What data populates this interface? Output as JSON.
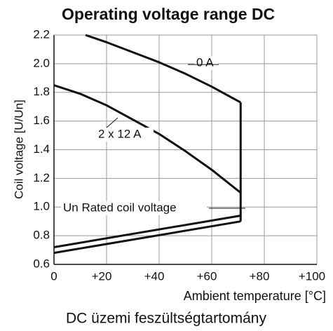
{
  "chart_data": {
    "type": "line",
    "title": "Operating voltage range DC",
    "y_label": "Coil voltage [U/Un]",
    "x_label": "Ambient temperature [°C]",
    "caption": "DC üzemi feszültségtartomány",
    "xlim": [
      0,
      100
    ],
    "xticks": [
      0,
      {
        "value": 20,
        "label": "+20"
      },
      {
        "value": 40,
        "label": "+40"
      },
      {
        "value": 60,
        "label": "+60"
      },
      {
        "value": 80,
        "label": "+80"
      },
      {
        "value": 100,
        "label": "+100"
      }
    ],
    "ylim": [
      0.6,
      2.2
    ],
    "yticks": [
      0.6,
      0.8,
      {
        "value": 1,
        "label": "1.0"
      },
      1.2,
      1.4,
      1.6,
      1.8,
      {
        "value": 2,
        "label": "2.0"
      },
      2.2
    ],
    "grid": true,
    "color": "#111111",
    "series": [
      {
        "x": [
          12,
          20,
          30,
          40,
          50,
          60,
          71
        ],
        "values": [
          2.2,
          2.15,
          2.08,
          2.01,
          1.93,
          1.84,
          1.73
        ]
      },
      {
        "x": [
          0,
          10,
          20,
          30,
          40,
          50,
          60,
          71
        ],
        "values": [
          1.85,
          1.79,
          1.71,
          1.61,
          1.51,
          1.39,
          1.26,
          1.1
        ]
      },
      {
        "x": [
          71,
          71
        ],
        "values": [
          0.9,
          1.73
        ]
      },
      {
        "x": [
          0,
          71
        ],
        "values": [
          0.68,
          0.9
        ]
      },
      {
        "x": [
          0,
          71
        ],
        "values": [
          0.72,
          0.94
        ]
      }
    ],
    "annotations": [
      "0 A",
      "2 x 12 A",
      "Un Rated coil voltage"
    ]
  }
}
